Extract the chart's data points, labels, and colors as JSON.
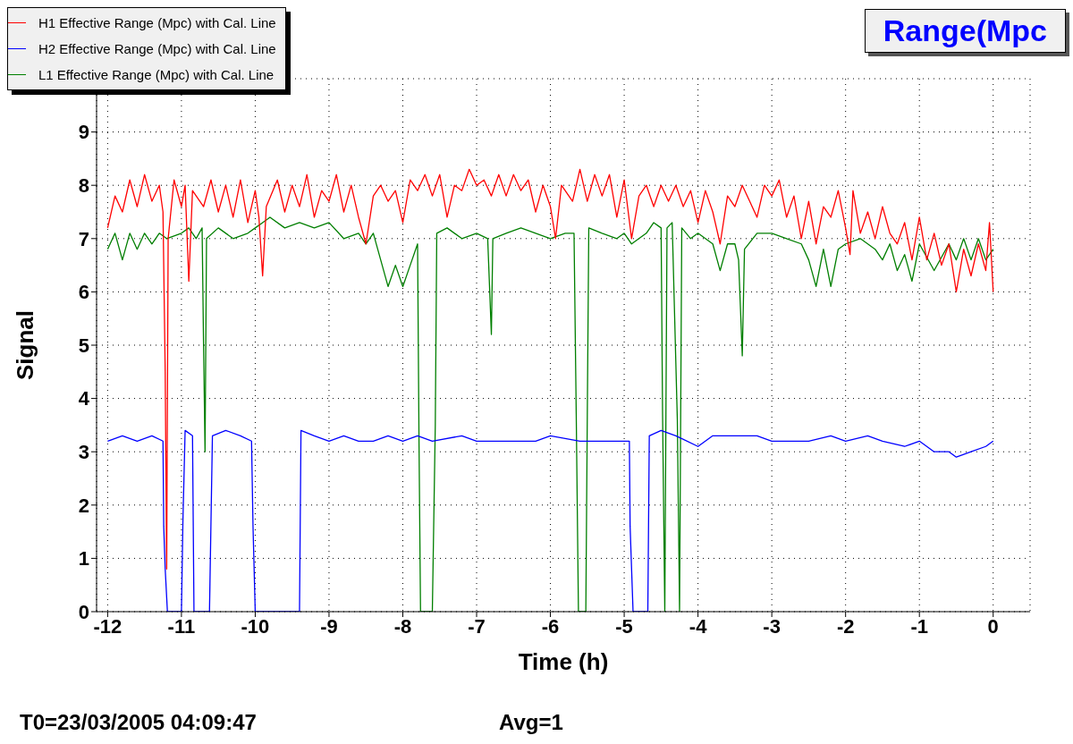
{
  "chart_data": {
    "type": "line",
    "title": "Range(Mpc",
    "xlabel": "Time (h)",
    "ylabel": "Signal",
    "xlim": [
      -12.15,
      0.5
    ],
    "xticks": [
      -12,
      -11,
      -10,
      -9,
      -8,
      -7,
      -6,
      -5,
      -4,
      -3,
      -2,
      -1,
      0
    ],
    "ylim": [
      0,
      10
    ],
    "yticks": [
      0,
      1,
      2,
      3,
      4,
      5,
      6,
      7,
      8,
      9
    ],
    "grid": true,
    "legend": "top left",
    "marker": "none",
    "line_style": "solid",
    "annotations": [
      "T0=23/03/2005 04:09:47",
      "Avg=1"
    ],
    "series": [
      {
        "name": "H1 Effective Range (Mpc) with Cal. Line",
        "color": "#ff0000",
        "x": [
          -12,
          -11.9,
          -11.8,
          -11.7,
          -11.6,
          -11.5,
          -11.4,
          -11.3,
          -11.25,
          -11.22,
          -11.2,
          -11.18,
          -11.1,
          -11,
          -10.95,
          -10.9,
          -10.85,
          -10.7,
          -10.6,
          -10.5,
          -10.4,
          -10.3,
          -10.2,
          -10.1,
          -10,
          -9.95,
          -9.9,
          -9.85,
          -9.7,
          -9.6,
          -9.5,
          -9.4,
          -9.3,
          -9.2,
          -9.1,
          -9,
          -8.9,
          -8.8,
          -8.7,
          -8.6,
          -8.5,
          -8.4,
          -8.3,
          -8.2,
          -8.1,
          -8,
          -7.9,
          -7.8,
          -7.7,
          -7.6,
          -7.5,
          -7.4,
          -7.3,
          -7.2,
          -7.1,
          -7,
          -6.9,
          -6.8,
          -6.7,
          -6.6,
          -6.5,
          -6.4,
          -6.3,
          -6.2,
          -6.1,
          -6,
          -5.93,
          -5.85,
          -5.7,
          -5.6,
          -5.5,
          -5.4,
          -5.3,
          -5.2,
          -5.1,
          -5,
          -4.9,
          -4.8,
          -4.7,
          -4.6,
          -4.5,
          -4.4,
          -4.3,
          -4.2,
          -4.1,
          -4,
          -3.9,
          -3.8,
          -3.7,
          -3.6,
          -3.5,
          -3.4,
          -3.3,
          -3.2,
          -3.1,
          -3,
          -2.9,
          -2.8,
          -2.7,
          -2.6,
          -2.5,
          -2.4,
          -2.3,
          -2.2,
          -2.1,
          -2,
          -1.94,
          -1.9,
          -1.8,
          -1.7,
          -1.6,
          -1.5,
          -1.4,
          -1.3,
          -1.2,
          -1.1,
          -1,
          -0.9,
          -0.8,
          -0.7,
          -0.6,
          -0.5,
          -0.4,
          -0.3,
          -0.2,
          -0.1,
          -0.05,
          0
        ],
        "values": [
          7.2,
          7.8,
          7.5,
          8.1,
          7.6,
          8.2,
          7.7,
          8.0,
          7.5,
          4.5,
          0.8,
          7.0,
          8.1,
          7.6,
          8.0,
          6.2,
          7.9,
          7.6,
          8.1,
          7.5,
          8.0,
          7.4,
          8.1,
          7.3,
          7.9,
          7.4,
          6.3,
          7.6,
          8.1,
          7.5,
          8.0,
          7.6,
          8.2,
          7.4,
          7.9,
          7.7,
          8.2,
          7.5,
          8.0,
          7.4,
          6.9,
          7.8,
          8.0,
          7.7,
          7.9,
          7.3,
          8.1,
          7.9,
          8.2,
          7.8,
          8.2,
          7.4,
          8.0,
          7.9,
          8.3,
          8.0,
          8.1,
          7.8,
          8.2,
          7.8,
          8.2,
          7.9,
          8.1,
          7.5,
          8.0,
          7.6,
          7.0,
          8.0,
          7.7,
          8.3,
          7.7,
          8.2,
          7.8,
          8.2,
          7.4,
          8.1,
          7.0,
          7.8,
          8.0,
          7.6,
          8.0,
          7.7,
          8.0,
          7.6,
          7.9,
          7.3,
          7.9,
          7.5,
          6.9,
          7.8,
          7.6,
          8.0,
          7.7,
          7.4,
          8.0,
          7.8,
          8.1,
          7.4,
          7.8,
          7.0,
          7.7,
          6.9,
          7.6,
          7.4,
          7.9,
          7.2,
          6.7,
          7.9,
          7.1,
          7.5,
          7.0,
          7.6,
          7.1,
          6.9,
          7.3,
          6.6,
          7.4,
          6.6,
          7.1,
          6.5,
          6.9,
          6.0,
          6.8,
          6.3,
          6.9,
          6.4,
          7.3,
          6.0
        ]
      },
      {
        "name": "H2 Effective Range (Mpc) with Cal. Line",
        "color": "#0000ff",
        "x": [
          -12,
          -11.8,
          -11.6,
          -11.4,
          -11.25,
          -11.24,
          -11.22,
          -11.19,
          -11,
          -10.98,
          -10.95,
          -10.85,
          -10.83,
          -10.62,
          -10.58,
          -10.4,
          -10.2,
          -10.05,
          -10.03,
          -10,
          -9.4,
          -9.38,
          -9.2,
          -9,
          -8.8,
          -8.6,
          -8.4,
          -8.2,
          -8,
          -7.8,
          -7.6,
          -7.2,
          -7,
          -6.6,
          -6.2,
          -6,
          -5.6,
          -5.4,
          -5,
          -4.93,
          -4.92,
          -4.88,
          -4.68,
          -4.66,
          -4.5,
          -4.3,
          -4,
          -3.8,
          -3.5,
          -3.2,
          -3,
          -2.8,
          -2.5,
          -2.2,
          -2,
          -1.7,
          -1.5,
          -1.2,
          -1,
          -0.8,
          -0.6,
          -0.5,
          -0.3,
          -0.1,
          0
        ],
        "values": [
          3.2,
          3.3,
          3.2,
          3.3,
          3.2,
          1.6,
          0.8,
          0,
          0,
          1.7,
          3.4,
          3.3,
          0,
          0,
          3.3,
          3.4,
          3.3,
          3.2,
          1.6,
          0,
          0,
          3.4,
          3.3,
          3.2,
          3.3,
          3.2,
          3.2,
          3.3,
          3.2,
          3.3,
          3.2,
          3.3,
          3.2,
          3.2,
          3.2,
          3.3,
          3.2,
          3.2,
          3.2,
          3.2,
          1.6,
          0,
          0,
          3.3,
          3.4,
          3.3,
          3.1,
          3.3,
          3.3,
          3.3,
          3.2,
          3.2,
          3.2,
          3.3,
          3.2,
          3.3,
          3.2,
          3.1,
          3.2,
          3.0,
          3.0,
          2.9,
          3.0,
          3.1,
          3.2
        ]
      },
      {
        "name": "L1 Effective Range (Mpc) with Cal. Line",
        "color": "#007f00",
        "x": [
          -12,
          -11.9,
          -11.8,
          -11.7,
          -11.6,
          -11.5,
          -11.4,
          -11.3,
          -11.2,
          -11,
          -10.9,
          -10.8,
          -10.72,
          -10.7,
          -10.68,
          -10.66,
          -10.5,
          -10.3,
          -10.1,
          -10,
          -9.9,
          -9.8,
          -9.6,
          -9.4,
          -9.2,
          -9,
          -8.8,
          -8.6,
          -8.5,
          -8.4,
          -8.3,
          -8.2,
          -8.1,
          -8,
          -7.9,
          -7.8,
          -7.78,
          -7.76,
          -7.6,
          -7.56,
          -7.54,
          -7.4,
          -7.2,
          -7,
          -6.85,
          -6.8,
          -6.78,
          -6.6,
          -6.4,
          -6.2,
          -6,
          -5.8,
          -5.68,
          -5.65,
          -5.62,
          -5.52,
          -5.5,
          -5.48,
          -5.3,
          -5.1,
          -5,
          -4.9,
          -4.7,
          -4.6,
          -4.5,
          -4.48,
          -4.45,
          -4.42,
          -4.35,
          -4.28,
          -4.25,
          -4.22,
          -4.1,
          -4,
          -3.8,
          -3.7,
          -3.6,
          -3.5,
          -3.45,
          -3.4,
          -3.37,
          -3.2,
          -3,
          -2.8,
          -2.6,
          -2.5,
          -2.4,
          -2.3,
          -2.2,
          -2.1,
          -2,
          -1.8,
          -1.6,
          -1.5,
          -1.4,
          -1.3,
          -1.2,
          -1.1,
          -1,
          -0.8,
          -0.6,
          -0.5,
          -0.4,
          -0.3,
          -0.2,
          -0.1,
          0
        ],
        "values": [
          6.8,
          7.1,
          6.6,
          7.1,
          6.8,
          7.1,
          6.9,
          7.1,
          7.0,
          7.1,
          7.2,
          7.0,
          7.2,
          5.0,
          3.0,
          7.0,
          7.2,
          7.0,
          7.1,
          7.2,
          7.3,
          7.4,
          7.2,
          7.3,
          7.2,
          7.3,
          7.0,
          7.1,
          6.9,
          7.1,
          6.6,
          6.1,
          6.5,
          6.1,
          6.5,
          6.9,
          3.1,
          0,
          0,
          3.5,
          7.1,
          7.2,
          7.0,
          7.1,
          7.0,
          5.2,
          7.0,
          7.1,
          7.2,
          7.1,
          7.0,
          7.1,
          7.1,
          3.7,
          0,
          0,
          3.7,
          7.2,
          7.1,
          7.0,
          7.1,
          6.9,
          7.1,
          7.3,
          7.2,
          3.7,
          0,
          7.2,
          7.3,
          3.6,
          0,
          7.2,
          7.0,
          7.1,
          6.9,
          6.4,
          6.9,
          6.9,
          6.6,
          4.8,
          6.8,
          7.1,
          7.1,
          7.0,
          6.9,
          6.6,
          6.1,
          6.8,
          6.1,
          6.8,
          6.9,
          7.0,
          6.8,
          6.6,
          6.9,
          6.4,
          6.7,
          6.2,
          6.9,
          6.4,
          6.9,
          6.6,
          7.0,
          6.6,
          7.0,
          6.6,
          6.8
        ]
      }
    ]
  }
}
